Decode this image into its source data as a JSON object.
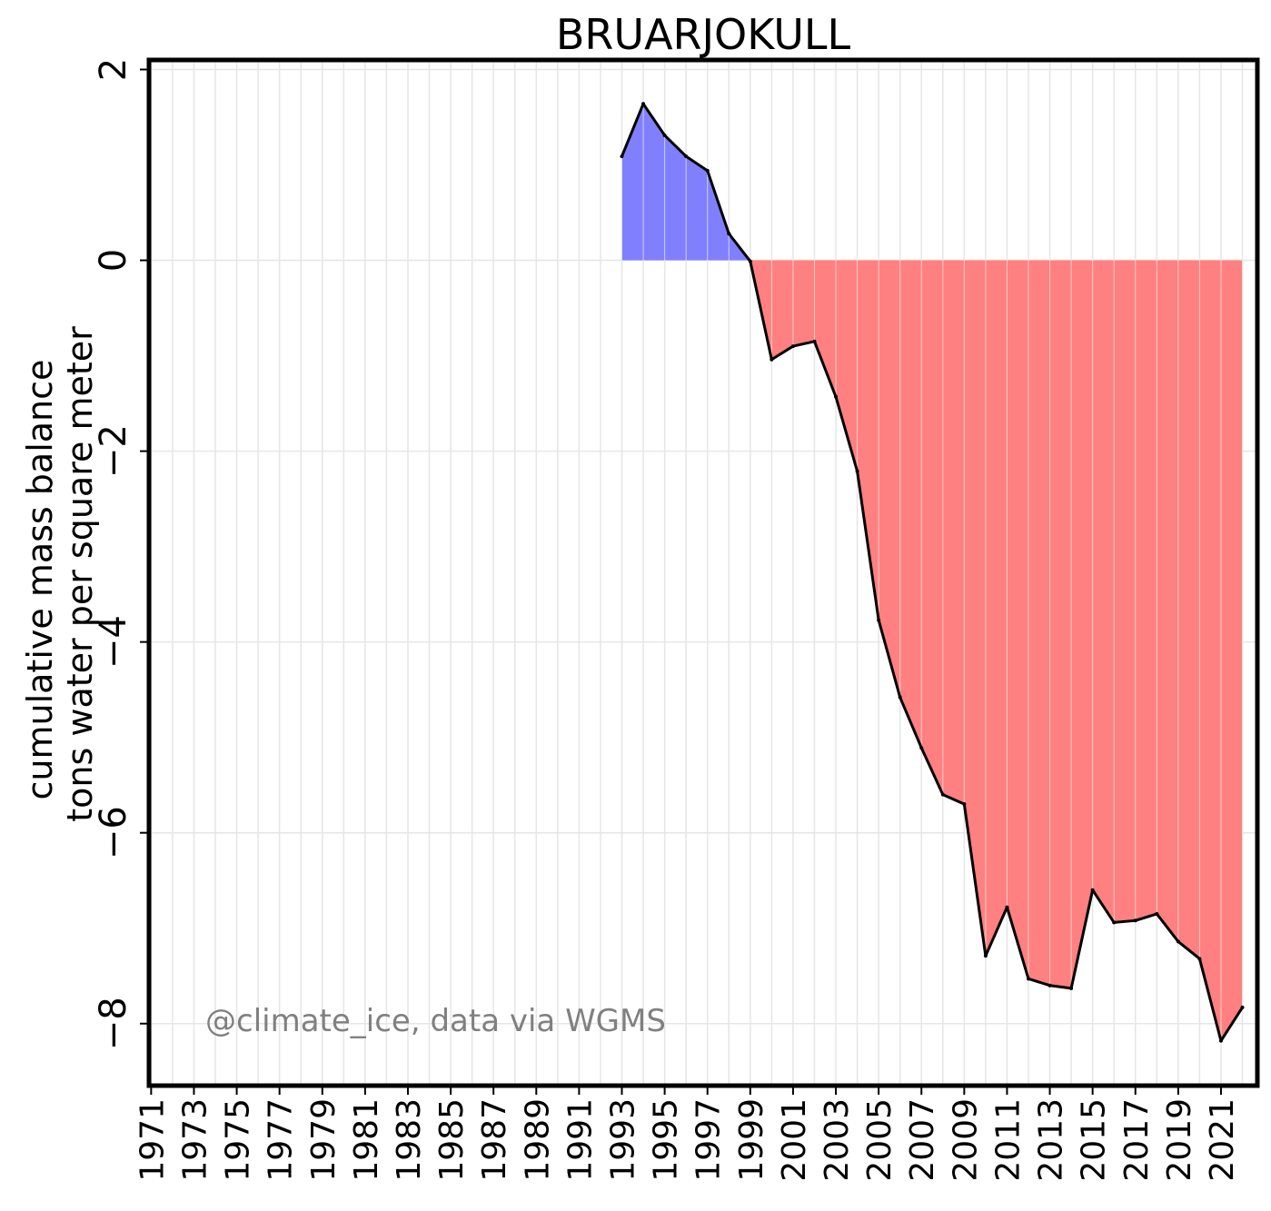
{
  "chart_data": {
    "type": "area",
    "title": "BRUARJOKULL",
    "ylabel_line1": "cumulative mass balance",
    "ylabel_line2": "tons water per square meter",
    "xlabel": "",
    "annotation": "@climate_ice, data via WGMS",
    "xlim": [
      1970.9,
      1993.0
    ],
    "x_range_years": [
      1970.9,
      2022.7
    ],
    "ylim": [
      -8.65,
      2.1
    ],
    "x_ticks": [
      1971,
      1973,
      1975,
      1977,
      1979,
      1981,
      1983,
      1985,
      1987,
      1989,
      1991,
      1993,
      1995,
      1997,
      1999,
      2001,
      2003,
      2005,
      2007,
      2009,
      2011,
      2013,
      2015,
      2017,
      2019,
      2021
    ],
    "x_tick_labels": [
      "1971",
      "1973",
      "1975",
      "1977",
      "1979",
      "1981",
      "1983",
      "1985",
      "1987",
      "1989",
      "1991",
      "1993",
      "1995",
      "1997",
      "1999",
      "2001",
      "2003",
      "2005",
      "2007",
      "2009",
      "2011",
      "2013",
      "2015",
      "2017",
      "2019",
      "2021"
    ],
    "y_ticks": [
      2,
      0,
      -2,
      -4,
      -6,
      -8
    ],
    "y_tick_labels": [
      "2",
      "0",
      "−2",
      "−4",
      "−6",
      "−8"
    ],
    "grid": true,
    "series": [
      {
        "x": [
          1993,
          1994,
          1995,
          1996,
          1997,
          1998,
          1999,
          2000,
          2001,
          2002,
          2003,
          2004,
          2005,
          2006,
          2007,
          2008,
          2009,
          2010,
          2011,
          2012,
          2013,
          2014,
          2015,
          2016,
          2017,
          2018,
          2019,
          2020,
          2021,
          2022
        ],
        "values": [
          1.09,
          1.64,
          1.31,
          1.09,
          0.94,
          0.28,
          -0.01,
          -1.04,
          -0.9,
          -0.85,
          -1.43,
          -2.21,
          -3.77,
          -4.58,
          -5.11,
          -5.6,
          -5.7,
          -7.29,
          -6.78,
          -7.53,
          -7.6,
          -7.63,
          -6.6,
          -6.94,
          -6.92,
          -6.85,
          -7.14,
          -7.32,
          -8.18,
          -7.83
        ]
      }
    ],
    "colors": {
      "positive_fill": "#8080ff",
      "negative_fill": "#ff8080",
      "line": "#000000",
      "grid": "#e6e6e6",
      "annotation": "#808080",
      "frame": "#000000"
    }
  }
}
